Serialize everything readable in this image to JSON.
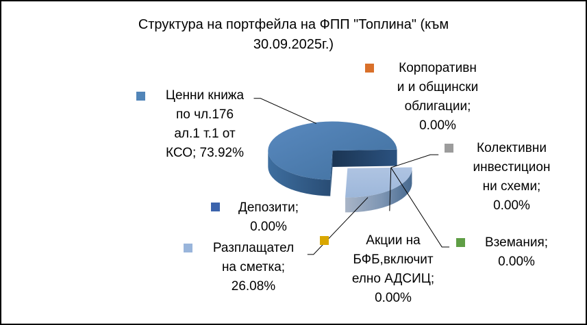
{
  "title": {
    "text": "Структура на портфейла на ФПП \"Топлина\" (към 30.09.2025г.)",
    "lines": [
      "Структура на портфейла на ФПП \"Топлина\" (към",
      "30.09.2025г.)"
    ]
  },
  "chart_data": {
    "type": "pie",
    "style": "3d-exploded-pie",
    "title": "Структура на портфейла на ФПП \"Топлина\" (към 30.09.2025г.)",
    "unit": "%",
    "points": [
      {
        "label": "Ценни книжа по чл.176 ал.1 т.1 от КСО",
        "value": 73.92,
        "color": "#5185B8"
      },
      {
        "label": "Корпоративни и общински облигации",
        "value": 0.0,
        "color": "#D9702A"
      },
      {
        "label": "Колективни инвестиционни схеми",
        "value": 0.0,
        "color": "#9C9C9C"
      },
      {
        "label": "Депозити",
        "value": 0.0,
        "color": "#3C64AC"
      },
      {
        "label": "Разплащателна сметка",
        "value": 26.08,
        "color": "#99B5DB"
      },
      {
        "label": "Акции на БФБ,включително АДСИЦ",
        "value": 0.0,
        "color": "#D9A700"
      },
      {
        "label": "Вземания",
        "value": 0.0,
        "color": "#5F9E45"
      }
    ],
    "exploded_point": "Разплащателна сметка",
    "legend_position": "data-labels-around-pie",
    "grid": false
  },
  "data_labels": [
    {
      "id": "cenni",
      "marker_color": "#5185B8",
      "lines": [
        "Ценни книжа",
        "по чл.176",
        "ал.1 т.1 от",
        "КСО; 73.92%"
      ]
    },
    {
      "id": "korp",
      "marker_color": "#D9702A",
      "lines": [
        "Корпоративн",
        "и и общински",
        "облигации;",
        "0.00%"
      ]
    },
    {
      "id": "kolek",
      "marker_color": "#9C9C9C",
      "lines": [
        "Колективни",
        "инвестицион",
        "ни схеми;",
        "0.00%"
      ]
    },
    {
      "id": "depoz",
      "marker_color": "#3C64AC",
      "lines": [
        "Депозити;",
        "0.00%"
      ]
    },
    {
      "id": "razpl",
      "marker_color": "#99B5DB",
      "lines": [
        "Разплащател",
        "на сметка;",
        "26.08%"
      ]
    },
    {
      "id": "akcii",
      "marker_color": "#D9A700",
      "lines": [
        "Акции на",
        "БФБ,включит",
        "елно АДСИЦ;",
        "0.00%"
      ]
    },
    {
      "id": "vzem",
      "marker_color": "#5F9E45",
      "lines": [
        "Вземания;",
        "0.00%"
      ]
    }
  ],
  "colors": {
    "pie_main_top": "#4E81BB",
    "pie_main_side": "#2C5380",
    "pie_main_inner": "#1E3C60",
    "pie_exploded_top": "#A6BEDF",
    "pie_exploded_side": "#4A6D94",
    "leader_line": "#000000",
    "text": "#000000",
    "background": "#FFFFFF",
    "frame_border": "#000000"
  }
}
